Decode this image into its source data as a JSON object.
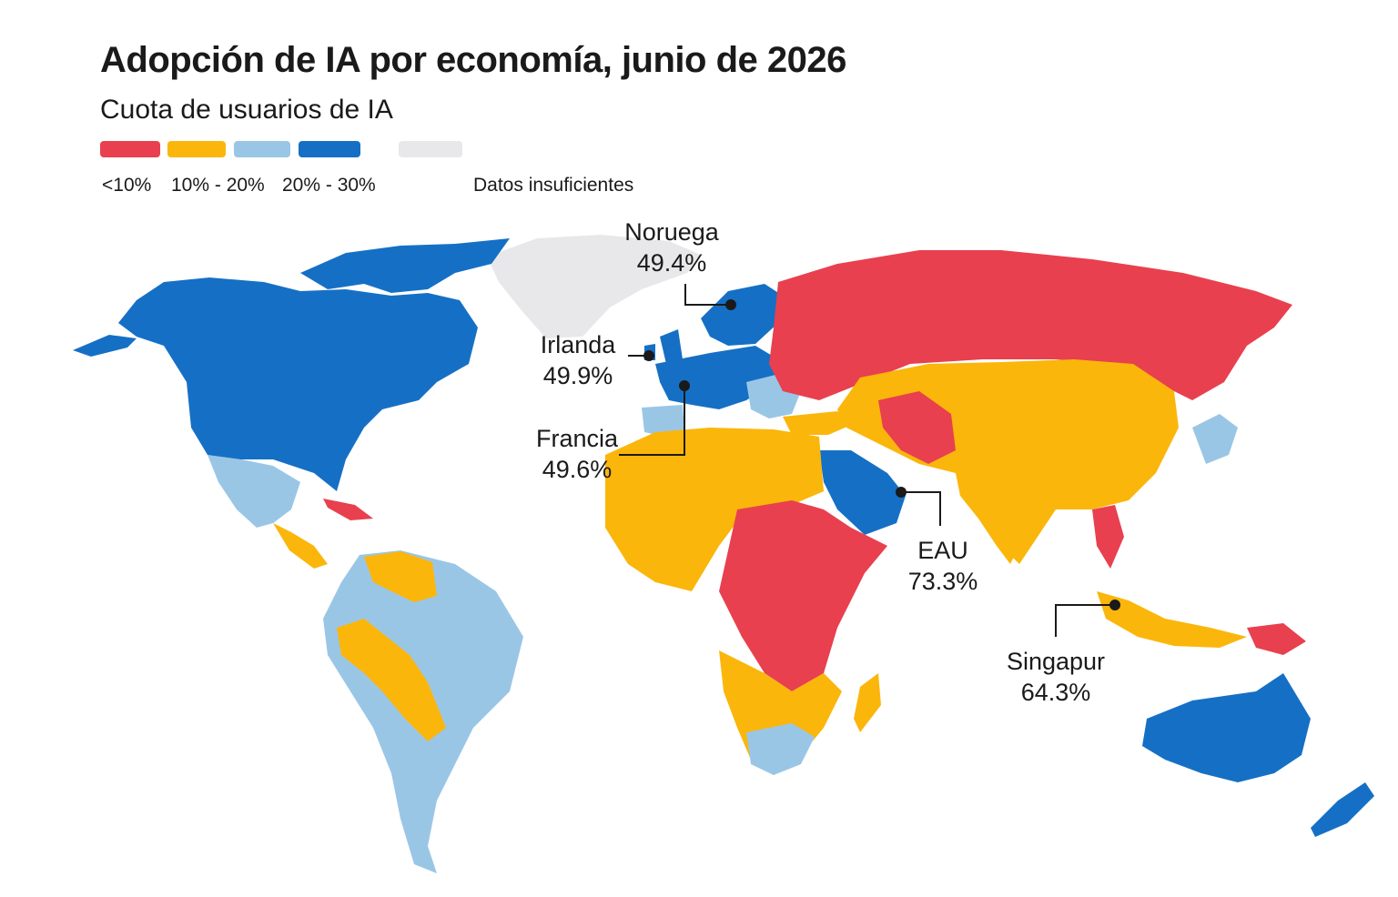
{
  "title": "Adopción de IA por economía, junio de 2026",
  "subtitle": "Cuota de usuarios de IA",
  "colors": {
    "lt10": "#e8404f",
    "b10_20": "#fbb60b",
    "b20_30": "#9ac6e6",
    "gt30": "#1570c5",
    "nodata": "#e8e8ea",
    "ocean": "#ffffff"
  },
  "legend": [
    {
      "label": "<10%",
      "color_key": "lt10"
    },
    {
      "label": "10% - 20%",
      "color_key": "b10_20"
    },
    {
      "label": "20% - 30%",
      "color_key": "b20_30"
    },
    {
      "label": "",
      "color_key": "gt30"
    },
    {
      "label": "Datos insuficientes",
      "color_key": "nodata"
    }
  ],
  "callouts": [
    {
      "name": "Noruega",
      "value": "49.4%"
    },
    {
      "name": "Irlanda",
      "value": "49.9%"
    },
    {
      "name": "Francia",
      "value": "49.6%"
    },
    {
      "name": "EAU",
      "value": "73.3%"
    },
    {
      "name": "Singapur",
      "value": "64.3%"
    }
  ]
}
